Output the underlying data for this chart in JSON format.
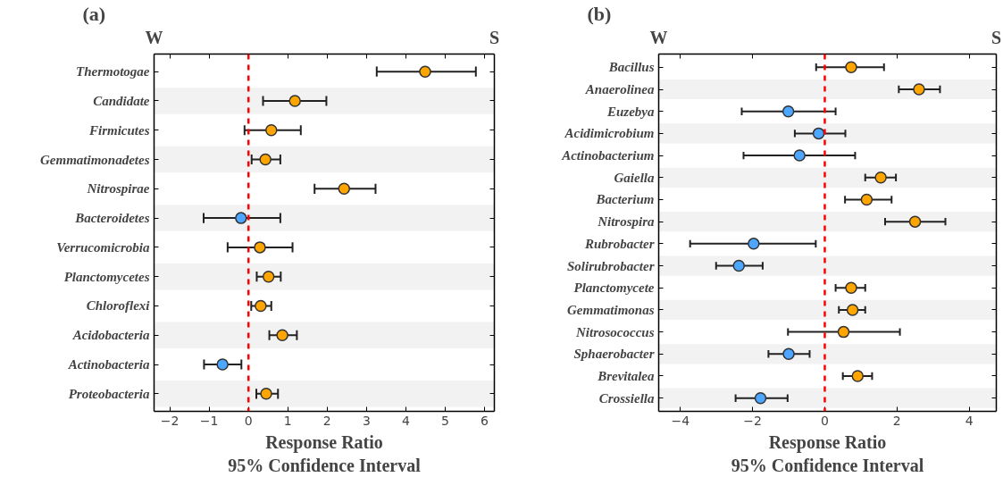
{
  "chart_data": [
    {
      "type": "scatter",
      "title": "(a)",
      "orientation": "horizontal",
      "xlabel": "Response Ratio\n95% Confidence Interval",
      "annotations": [
        "W",
        "S"
      ],
      "categories": [
        "Thermotogae",
        "Candidate",
        "Firmicutes",
        "Gemmatimonadetes",
        "Nitrospirae",
        "Bacteroidetes",
        "Verrucomicrobia",
        "Planctomycetes",
        "Chloroflexi",
        "Acidobacteria",
        "Actinobacteria",
        "Proteobacteria"
      ],
      "values": [
        4.49,
        1.18,
        0.58,
        0.43,
        2.43,
        -0.19,
        0.29,
        0.51,
        0.31,
        0.86,
        -0.66,
        0.45
      ],
      "errors": [
        [
          3.26,
          5.78
        ],
        [
          0.37,
          1.98
        ],
        [
          -0.1,
          1.33
        ],
        [
          0.08,
          0.81
        ],
        [
          1.68,
          3.23
        ],
        [
          -1.14,
          0.81
        ],
        [
          -0.53,
          1.12
        ],
        [
          0.21,
          0.82
        ],
        [
          0.07,
          0.58
        ],
        [
          0.53,
          1.23
        ],
        [
          -1.13,
          -0.18
        ],
        [
          0.2,
          0.75
        ]
      ],
      "colors": [
        "#ffa500",
        "#ffa500",
        "#ffa500",
        "#ffa500",
        "#ffa500",
        "#4da6ff",
        "#ffa500",
        "#ffa500",
        "#ffa500",
        "#ffa500",
        "#4da6ff",
        "#ffa500"
      ],
      "xlim": [
        -2.4,
        6.25
      ],
      "xticks": [
        -2,
        -1,
        0,
        1,
        2,
        3,
        4,
        5,
        6
      ],
      "ref_lines": [
        {
          "axis": "x",
          "value": 0,
          "color": "#ff0000",
          "line_style": "dashed"
        }
      ],
      "bands": [
        {
          "axis": "y",
          "from": "Candidate",
          "to": "Candidate",
          "color": "#f2f2f2"
        },
        {
          "axis": "y",
          "from": "Gemmatimonadetes",
          "to": "Gemmatimonadetes",
          "color": "#f2f2f2"
        },
        {
          "axis": "y",
          "from": "Bacteroidetes",
          "to": "Bacteroidetes",
          "color": "#f2f2f2"
        },
        {
          "axis": "y",
          "from": "Planctomycetes",
          "to": "Planctomycetes",
          "color": "#f2f2f2"
        },
        {
          "axis": "y",
          "from": "Acidobacteria",
          "to": "Acidobacteria",
          "color": "#f2f2f2"
        },
        {
          "axis": "y",
          "from": "Proteobacteria",
          "to": "Proteobacteria",
          "color": "#f2f2f2"
        }
      ],
      "marker": "circle",
      "grid": false
    },
    {
      "type": "scatter",
      "title": "(b)",
      "orientation": "horizontal",
      "xlabel": "Response Ratio\n95% Confidence Interval",
      "annotations": [
        "W",
        "S"
      ],
      "categories": [
        "Bacillus",
        "Anaerolinea",
        "Euzebya",
        "Acidimicrobium",
        "Actinobacterium",
        "Gaiella",
        "Bacterium",
        "Nitrospira",
        "Rubrobacter",
        "Solirubrobacter",
        "Planctomycete",
        "Gemmatimonas",
        "Nitrosococcus",
        "Sphaerobacter",
        "Brevitalea",
        "Crossiella"
      ],
      "values": [
        0.73,
        2.61,
        -1.01,
        -0.17,
        -0.7,
        1.55,
        1.16,
        2.5,
        -1.97,
        -2.38,
        0.73,
        0.77,
        0.52,
        -1.0,
        0.91,
        -1.78
      ],
      "errors": [
        [
          -0.24,
          1.64
        ],
        [
          2.05,
          3.19
        ],
        [
          -2.3,
          0.3
        ],
        [
          -0.83,
          0.57
        ],
        [
          -2.25,
          0.84
        ],
        [
          1.12,
          1.97
        ],
        [
          0.56,
          1.85
        ],
        [
          1.67,
          3.34
        ],
        [
          -3.73,
          -0.25
        ],
        [
          -3.01,
          -1.72
        ],
        [
          0.3,
          1.12
        ],
        [
          0.39,
          1.12
        ],
        [
          -1.02,
          2.08
        ],
        [
          -1.56,
          -0.42
        ],
        [
          0.5,
          1.31
        ],
        [
          -2.47,
          -1.03
        ]
      ],
      "colors": [
        "#ffa500",
        "#ffa500",
        "#4da6ff",
        "#4da6ff",
        "#4da6ff",
        "#ffa500",
        "#ffa500",
        "#ffa500",
        "#4da6ff",
        "#4da6ff",
        "#ffa500",
        "#ffa500",
        "#ffa500",
        "#4da6ff",
        "#ffa500",
        "#4da6ff"
      ],
      "xlim": [
        -4.6,
        4.75
      ],
      "xticks": [
        -4,
        -2,
        0,
        2,
        4
      ],
      "ref_lines": [
        {
          "axis": "x",
          "value": 0,
          "color": "#ff0000",
          "line_style": "dashed"
        }
      ],
      "bands": [
        {
          "axis": "y",
          "from": "Anaerolinea",
          "to": "Anaerolinea",
          "color": "#f2f2f2"
        },
        {
          "axis": "y",
          "from": "Acidimicrobium",
          "to": "Acidimicrobium",
          "color": "#f2f2f2"
        },
        {
          "axis": "y",
          "from": "Gaiella",
          "to": "Gaiella",
          "color": "#f2f2f2"
        },
        {
          "axis": "y",
          "from": "Nitrospira",
          "to": "Nitrospira",
          "color": "#f2f2f2"
        },
        {
          "axis": "y",
          "from": "Solirubrobacter",
          "to": "Solirubrobacter",
          "color": "#f2f2f2"
        },
        {
          "axis": "y",
          "from": "Gemmatimonas",
          "to": "Gemmatimonas",
          "color": "#f2f2f2"
        },
        {
          "axis": "y",
          "from": "Sphaerobacter",
          "to": "Sphaerobacter",
          "color": "#f2f2f2"
        },
        {
          "axis": "y",
          "from": "Crossiella",
          "to": "Crossiella",
          "color": "#f2f2f2"
        }
      ],
      "marker": "circle",
      "grid": false
    }
  ]
}
